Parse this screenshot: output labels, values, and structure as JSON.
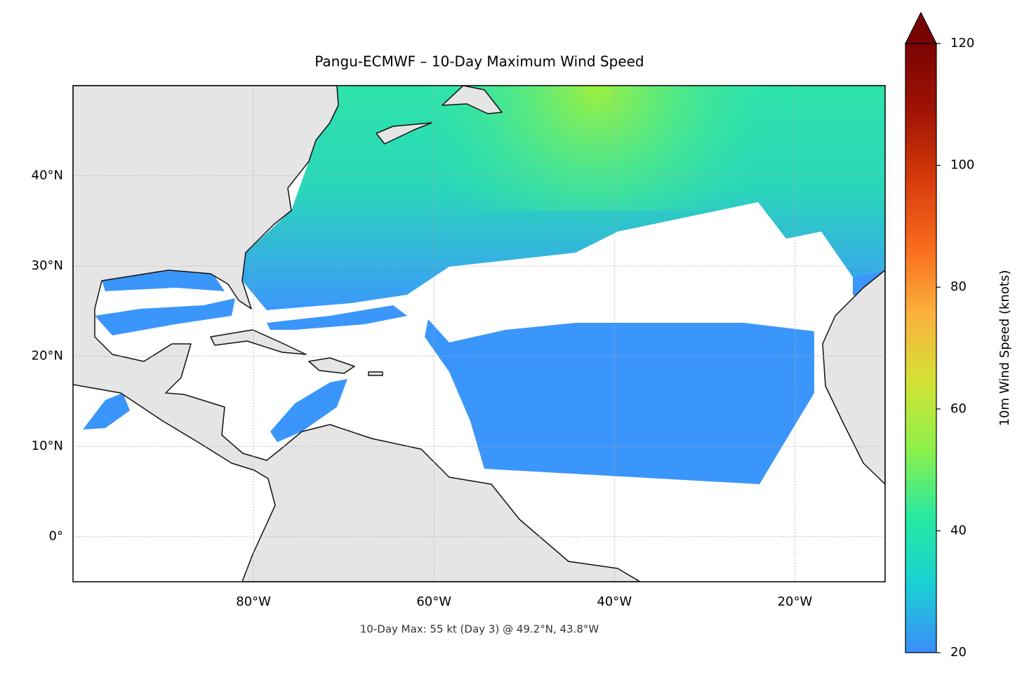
{
  "chart_data": {
    "type": "map",
    "title": "Pangu-ECMWF – 10-Day Maximum Wind Speed",
    "annotation": "10-Day Max: 55 kt (Day 3) @ 49.2°N, 43.8°W",
    "xlim": [
      -100,
      -10
    ],
    "xticks": [
      {
        "value": -80,
        "label": "80°W"
      },
      {
        "value": -60,
        "label": "60°W"
      },
      {
        "value": -40,
        "label": "40°W"
      },
      {
        "value": -20,
        "label": "20°W"
      }
    ],
    "ylim": [
      -5,
      50
    ],
    "yticks": [
      {
        "value": 0,
        "label": "0°"
      },
      {
        "value": 10,
        "label": "10°N"
      },
      {
        "value": 20,
        "label": "20°N"
      },
      {
        "value": 30,
        "label": "30°N"
      },
      {
        "value": 40,
        "label": "40°N"
      }
    ],
    "grid": true,
    "colorbar": {
      "label": "10m Wind Speed (knots)",
      "lim": [
        20,
        120
      ],
      "ticks": [
        20,
        40,
        60,
        80,
        100,
        120
      ],
      "extend": "max",
      "colors": [
        "#3b8df9",
        "#1bcfd4",
        "#27e9a0",
        "#8df04a",
        "#d3e236",
        "#fbb13c",
        "#f96b1e",
        "#d63a0b",
        "#a11303",
        "#7a0403"
      ]
    }
  }
}
